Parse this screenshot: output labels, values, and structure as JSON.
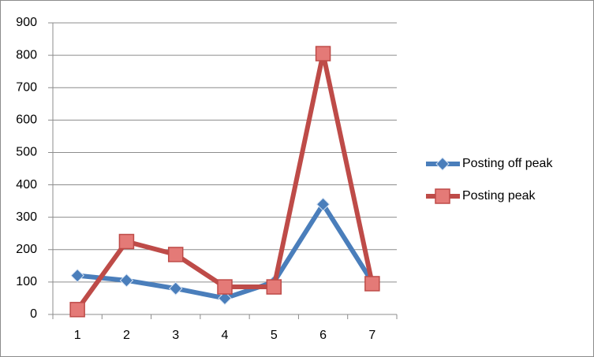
{
  "chart_data": {
    "type": "line",
    "categories": [
      "1",
      "2",
      "3",
      "4",
      "5",
      "6",
      "7"
    ],
    "series": [
      {
        "name": "Posting off peak",
        "color": "#4a7ebb",
        "marker": "diamond",
        "values": [
          120,
          105,
          80,
          50,
          100,
          340,
          100
        ]
      },
      {
        "name": "Posting peak",
        "color": "#be4b48",
        "marker": "square",
        "values": [
          15,
          225,
          185,
          85,
          85,
          805,
          95
        ]
      }
    ],
    "ylim": [
      0,
      900
    ],
    "yticks": [
      0,
      100,
      200,
      300,
      400,
      500,
      600,
      700,
      800,
      900
    ],
    "grid": true,
    "legend": "right"
  }
}
